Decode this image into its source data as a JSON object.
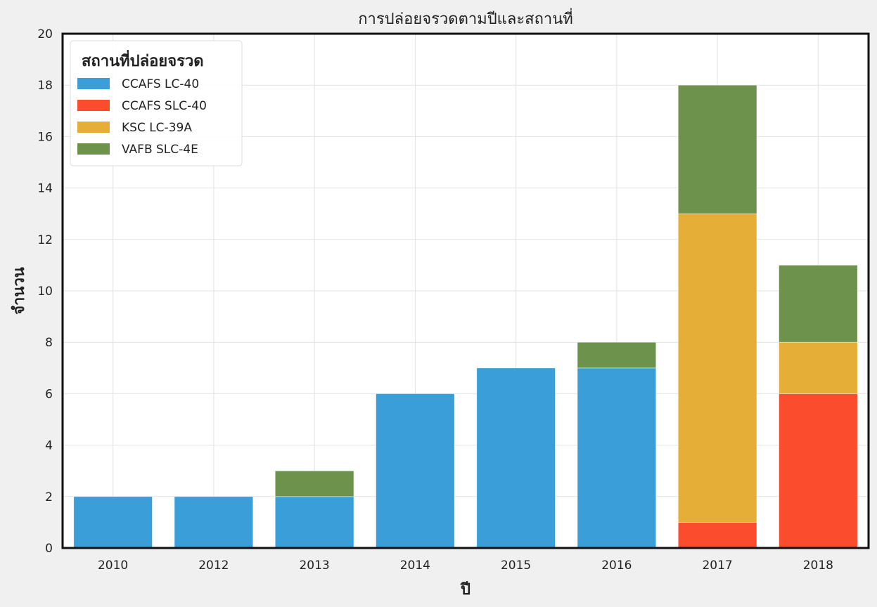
{
  "chart_data": {
    "type": "bar",
    "stacked": true,
    "title": "การปล่อยจรวดตามปีและสถานที่",
    "xlabel": "ปี",
    "ylabel": "จำนวน",
    "categories": [
      "2010",
      "2012",
      "2013",
      "2014",
      "2015",
      "2016",
      "2017",
      "2018"
    ],
    "ylim": [
      0,
      20
    ],
    "yticks": [
      0,
      2,
      4,
      6,
      8,
      10,
      12,
      14,
      16,
      18,
      20
    ],
    "grid": true,
    "legend": {
      "title": "สถานที่ปล่อยจรวด",
      "position": "top-left"
    },
    "series": [
      {
        "name": "CCAFS LC-40",
        "color": "#3a9fd8",
        "values": [
          2,
          2,
          2,
          6,
          7,
          7,
          0,
          0
        ]
      },
      {
        "name": "CCAFS SLC-40",
        "color": "#fb4d2e",
        "values": [
          0,
          0,
          0,
          0,
          0,
          0,
          1,
          6
        ]
      },
      {
        "name": "KSC LC-39A",
        "color": "#e5ae37",
        "values": [
          0,
          0,
          0,
          0,
          0,
          0,
          12,
          2
        ]
      },
      {
        "name": "VAFB SLC-4E",
        "color": "#6d924c",
        "values": [
          0,
          0,
          1,
          0,
          0,
          1,
          5,
          3
        ]
      }
    ]
  }
}
